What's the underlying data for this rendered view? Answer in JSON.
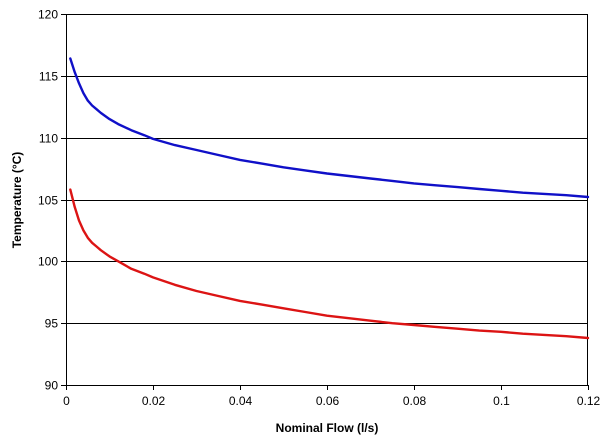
{
  "chart_data": {
    "type": "line",
    "title": "",
    "xlabel": "Nominal Flow (l/s)",
    "ylabel": "Temperature (°C)",
    "xlim": [
      0,
      0.12
    ],
    "ylim": [
      90,
      120
    ],
    "x_ticks": [
      0,
      0.02,
      0.04,
      0.06,
      0.08,
      0.1,
      0.12
    ],
    "x_tick_labels": [
      "0",
      "0.02",
      "0.04",
      "0.06",
      "0.08",
      "0.1",
      "0.12"
    ],
    "y_ticks": [
      90,
      95,
      100,
      105,
      110,
      115,
      120
    ],
    "y_tick_labels": [
      "90",
      "95",
      "100",
      "105",
      "110",
      "115",
      "120"
    ],
    "grid": "horizontal",
    "legend": "none",
    "series": [
      {
        "color": "#1010c8",
        "points": [
          [
            0.001,
            116.4
          ],
          [
            0.002,
            115.3
          ],
          [
            0.003,
            114.4
          ],
          [
            0.004,
            113.6
          ],
          [
            0.005,
            113.0
          ],
          [
            0.006,
            112.6
          ],
          [
            0.007,
            112.3
          ],
          [
            0.008,
            112.0
          ],
          [
            0.01,
            111.5
          ],
          [
            0.012,
            111.1
          ],
          [
            0.015,
            110.6
          ],
          [
            0.018,
            110.2
          ],
          [
            0.02,
            109.9
          ],
          [
            0.025,
            109.4
          ],
          [
            0.03,
            109.0
          ],
          [
            0.035,
            108.6
          ],
          [
            0.04,
            108.2
          ],
          [
            0.045,
            107.9
          ],
          [
            0.05,
            107.6
          ],
          [
            0.055,
            107.35
          ],
          [
            0.06,
            107.1
          ],
          [
            0.065,
            106.9
          ],
          [
            0.07,
            106.7
          ],
          [
            0.075,
            106.5
          ],
          [
            0.08,
            106.3
          ],
          [
            0.085,
            106.15
          ],
          [
            0.09,
            106.0
          ],
          [
            0.095,
            105.85
          ],
          [
            0.1,
            105.7
          ],
          [
            0.105,
            105.55
          ],
          [
            0.11,
            105.45
          ],
          [
            0.115,
            105.35
          ],
          [
            0.12,
            105.2
          ]
        ]
      },
      {
        "color": "#dc1414",
        "points": [
          [
            0.001,
            105.8
          ],
          [
            0.002,
            104.4
          ],
          [
            0.003,
            103.3
          ],
          [
            0.004,
            102.5
          ],
          [
            0.005,
            101.9
          ],
          [
            0.006,
            101.5
          ],
          [
            0.007,
            101.2
          ],
          [
            0.008,
            100.9
          ],
          [
            0.01,
            100.4
          ],
          [
            0.012,
            100.0
          ],
          [
            0.015,
            99.4
          ],
          [
            0.018,
            99.0
          ],
          [
            0.02,
            98.7
          ],
          [
            0.025,
            98.1
          ],
          [
            0.03,
            97.6
          ],
          [
            0.035,
            97.2
          ],
          [
            0.04,
            96.8
          ],
          [
            0.045,
            96.5
          ],
          [
            0.05,
            96.2
          ],
          [
            0.055,
            95.9
          ],
          [
            0.06,
            95.6
          ],
          [
            0.065,
            95.4
          ],
          [
            0.07,
            95.2
          ],
          [
            0.075,
            95.0
          ],
          [
            0.08,
            94.85
          ],
          [
            0.085,
            94.7
          ],
          [
            0.09,
            94.55
          ],
          [
            0.095,
            94.4
          ],
          [
            0.1,
            94.3
          ],
          [
            0.105,
            94.15
          ],
          [
            0.11,
            94.05
          ],
          [
            0.115,
            93.95
          ],
          [
            0.12,
            93.8
          ]
        ]
      }
    ]
  }
}
